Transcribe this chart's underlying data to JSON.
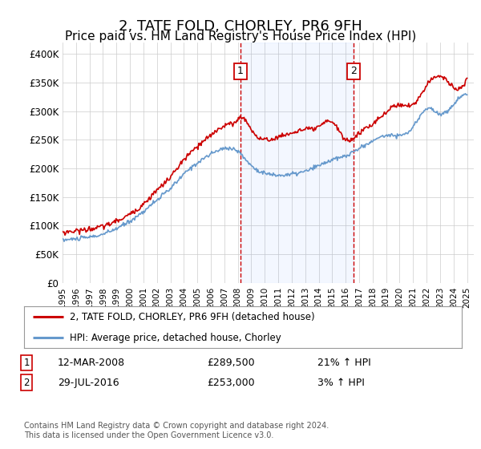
{
  "title": "2, TATE FOLD, CHORLEY, PR6 9FH",
  "subtitle": "Price paid vs. HM Land Registry's House Price Index (HPI)",
  "title_fontsize": 13,
  "subtitle_fontsize": 11,
  "ylim": [
    0,
    420000
  ],
  "yticks": [
    0,
    50000,
    100000,
    150000,
    200000,
    250000,
    300000,
    350000,
    400000
  ],
  "ytick_labels": [
    "£0",
    "£50K",
    "£100K",
    "£150K",
    "£200K",
    "£250K",
    "£300K",
    "£350K",
    "£400K"
  ],
  "xlim_start": 1995.0,
  "xlim_end": 2025.5,
  "xtick_years": [
    1995,
    1996,
    1997,
    1998,
    1999,
    2000,
    2001,
    2002,
    2003,
    2004,
    2005,
    2006,
    2007,
    2008,
    2009,
    2010,
    2011,
    2012,
    2013,
    2014,
    2015,
    2016,
    2017,
    2018,
    2019,
    2020,
    2021,
    2022,
    2023,
    2024,
    2025
  ],
  "sale1_x": 2008.2,
  "sale1_y": 289500,
  "sale2_x": 2016.58,
  "sale2_y": 253000,
  "sale1_date": "12-MAR-2008",
  "sale1_price": "£289,500",
  "sale1_hpi": "21% ↑ HPI",
  "sale2_date": "29-JUL-2016",
  "sale2_price": "£253,000",
  "sale2_hpi": "3% ↑ HPI",
  "shaded_region_alpha": 0.08,
  "shaded_region_color": "#6699ff",
  "dashed_line_color": "#cc0000",
  "hpi_line_color": "#6699cc",
  "price_line_color": "#cc0000",
  "grid_color": "#cccccc",
  "background_color": "#ffffff",
  "legend_line1": "2, TATE FOLD, CHORLEY, PR6 9FH (detached house)",
  "legend_line2": "HPI: Average price, detached house, Chorley",
  "footnote": "Contains HM Land Registry data © Crown copyright and database right 2024.\nThis data is licensed under the Open Government Licence v3.0.",
  "box_color": "#cc0000",
  "hpi_x": [
    1995,
    1996,
    1997,
    1998,
    1999,
    2000,
    2001,
    2002,
    2003,
    2004,
    2005,
    2006,
    2007,
    2008,
    2009,
    2010,
    2011,
    2012,
    2013,
    2014,
    2015,
    2016,
    2017,
    2018,
    2019,
    2020,
    2021,
    2022,
    2023,
    2024,
    2025
  ],
  "hpi_y": [
    75000,
    77000,
    80000,
    85000,
    95000,
    108000,
    125000,
    145000,
    165000,
    190000,
    210000,
    225000,
    235000,
    230000,
    205000,
    192000,
    188000,
    190000,
    195000,
    205000,
    215000,
    222000,
    235000,
    248000,
    258000,
    258000,
    272000,
    305000,
    295000,
    312000,
    330000
  ],
  "prop_x": [
    1995,
    1996,
    1997,
    1998,
    1999,
    2000,
    2001,
    2002,
    2003,
    2004,
    2005,
    2006,
    2007,
    2008,
    2008.2,
    2009,
    2010,
    2011,
    2012,
    2013,
    2014,
    2015,
    2016,
    2016.58,
    2017,
    2018,
    2019,
    2020,
    2021,
    2022,
    2023,
    2024,
    2025
  ],
  "prop_y": [
    88000,
    91000,
    94000,
    99000,
    108000,
    120000,
    138000,
    162000,
    185000,
    215000,
    238000,
    258000,
    275000,
    285000,
    289500,
    268000,
    250000,
    255000,
    262000,
    268000,
    272000,
    282000,
    250000,
    253000,
    262000,
    278000,
    298000,
    312000,
    312000,
    345000,
    362000,
    342000,
    358000
  ]
}
